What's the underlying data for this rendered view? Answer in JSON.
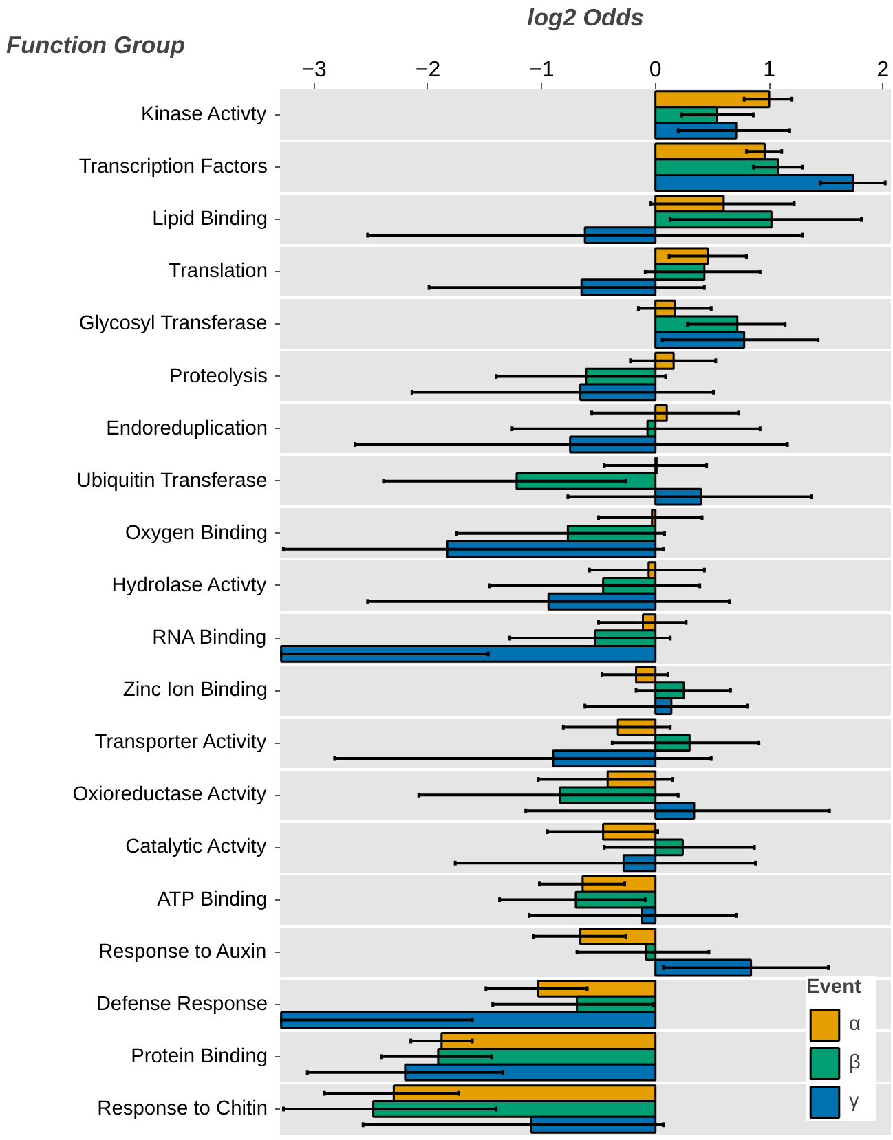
{
  "chart_data": {
    "type": "bar",
    "orientation": "horizontal",
    "xlabel": "log2 Odds",
    "ylabel": "Function Group",
    "legend_title": "Event",
    "legend": "bottom right",
    "grid": "y",
    "xlim": [
      -3.3,
      2.07
    ],
    "xticks": [
      -3,
      -2,
      -1,
      0,
      1,
      2
    ],
    "categories": [
      "Kinase Activty",
      "Transcription Factors",
      "Lipid Binding",
      "Translation",
      "Glycosyl Transferase",
      "Proteolysis",
      "Endoreduplication",
      "Ubiquitin Transferase",
      "Oxygen Binding",
      "Hydrolase Activty",
      "RNA Binding",
      "Zinc Ion Binding",
      "Transporter Activity",
      "Oxioreductase Actvity",
      "Catalytic Actvity",
      "ATP Binding",
      "Response to Auxin",
      "Defense Response",
      "Protein Binding",
      "Response to Chitin"
    ],
    "series": [
      {
        "name": "α",
        "color": "#e69f00",
        "values": [
          1.0,
          0.96,
          0.6,
          0.46,
          0.17,
          0.16,
          0.1,
          0.01,
          -0.03,
          -0.06,
          -0.11,
          -0.17,
          -0.33,
          -0.42,
          -0.46,
          -0.64,
          -0.66,
          -1.03,
          -1.88,
          -2.3
        ],
        "errors": [
          [
            0.78,
            1.2
          ],
          [
            0.8,
            1.11
          ],
          [
            -0.04,
            1.22
          ],
          [
            0.12,
            0.8
          ],
          [
            -0.15,
            0.49
          ],
          [
            -0.22,
            0.53
          ],
          [
            -0.56,
            0.73
          ],
          [
            -0.45,
            0.45
          ],
          [
            -0.5,
            0.41
          ],
          [
            -0.58,
            0.43
          ],
          [
            -0.5,
            0.27
          ],
          [
            -0.47,
            0.11
          ],
          [
            -0.81,
            0.13
          ],
          [
            -1.03,
            0.15
          ],
          [
            -0.95,
            0.02
          ],
          [
            -1.02,
            -0.27
          ],
          [
            -1.07,
            -0.26
          ],
          [
            -1.49,
            -0.6
          ],
          [
            -2.15,
            -1.61
          ],
          [
            -2.91,
            -1.73
          ]
        ]
      },
      {
        "name": "β",
        "color": "#009e73",
        "values": [
          0.54,
          1.08,
          1.02,
          0.43,
          0.72,
          -0.61,
          -0.07,
          -1.22,
          -0.77,
          -0.46,
          -0.53,
          0.25,
          0.3,
          -0.84,
          0.24,
          -0.7,
          -0.08,
          -0.69,
          -1.91,
          -2.48
        ],
        "errors": [
          [
            0.23,
            0.86
          ],
          [
            0.86,
            1.29
          ],
          [
            0.13,
            1.81
          ],
          [
            -0.09,
            0.92
          ],
          [
            0.28,
            1.14
          ],
          [
            -1.4,
            0.09
          ],
          [
            -1.26,
            0.92
          ],
          [
            -2.39,
            -0.26
          ],
          [
            -1.75,
            0.08
          ],
          [
            -1.46,
            0.39
          ],
          [
            -1.28,
            0.13
          ],
          [
            -0.17,
            0.66
          ],
          [
            -0.38,
            0.91
          ],
          [
            -2.08,
            0.2
          ],
          [
            -0.45,
            0.87
          ],
          [
            -1.37,
            -0.09
          ],
          [
            -0.69,
            0.47
          ],
          [
            -1.43,
            -0.02
          ],
          [
            -2.41,
            -1.44
          ],
          [
            -3.27,
            -1.4
          ]
        ]
      },
      {
        "name": "γ",
        "color": "#0072b2",
        "values": [
          0.71,
          1.74,
          -0.62,
          -0.65,
          0.78,
          -0.66,
          -0.75,
          0.4,
          -1.83,
          -0.94,
          -3.29,
          0.14,
          -0.9,
          0.34,
          -0.28,
          -0.12,
          0.84,
          -3.29,
          -2.2,
          -1.09
        ],
        "errors": [
          [
            0.2,
            1.18
          ],
          [
            1.45,
            2.02
          ],
          [
            -2.53,
            1.29
          ],
          [
            -1.99,
            0.43
          ],
          [
            0.06,
            1.43
          ],
          [
            -2.14,
            0.51
          ],
          [
            -2.64,
            1.16
          ],
          [
            -0.77,
            1.37
          ],
          [
            -3.27,
            0.07
          ],
          [
            -2.53,
            0.65
          ],
          [
            -3.29,
            -1.47
          ],
          [
            -0.62,
            0.81
          ],
          [
            -2.82,
            0.49
          ],
          [
            -1.14,
            1.53
          ],
          [
            -1.76,
            0.88
          ],
          [
            -1.11,
            0.71
          ],
          [
            0.07,
            1.52
          ],
          [
            -3.29,
            -1.61
          ],
          [
            -3.06,
            -1.34
          ],
          [
            -2.57,
            0.07
          ]
        ]
      }
    ]
  }
}
